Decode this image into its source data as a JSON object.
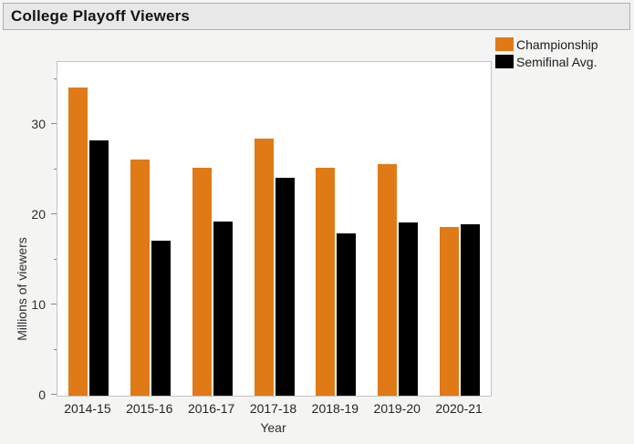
{
  "window": {
    "title": "College Playoff Viewers"
  },
  "chart_data": {
    "type": "bar",
    "title": "College Playoff Viewers",
    "categories": [
      "2014-15",
      "2015-16",
      "2016-17",
      "2017-18",
      "2018-19",
      "2019-20",
      "2020-21"
    ],
    "series": [
      {
        "name": "Championship",
        "color": "#df7a16",
        "values": [
          34.2,
          26.2,
          25.3,
          28.5,
          25.3,
          25.7,
          18.7
        ]
      },
      {
        "name": "Semifinal Avg.",
        "color": "#000000",
        "values": [
          28.3,
          17.2,
          19.3,
          24.2,
          18.0,
          19.2,
          19.0
        ]
      }
    ],
    "xlabel": "Year",
    "ylabel": "Millions of viewers",
    "ylim": [
      0,
      37
    ],
    "yticks_major": [
      0,
      10,
      20,
      30
    ],
    "yticks_minor": [
      5,
      15,
      25,
      35
    ],
    "grid": false,
    "legend_position": "outside-top-right"
  },
  "colors": {
    "championship_bar": "#df7a16",
    "semifinal_bar": "#000000",
    "titlebar_bg": "#e9e8e8",
    "page_bg": "#f4f4f3",
    "plot_bg": "#ffffff"
  }
}
